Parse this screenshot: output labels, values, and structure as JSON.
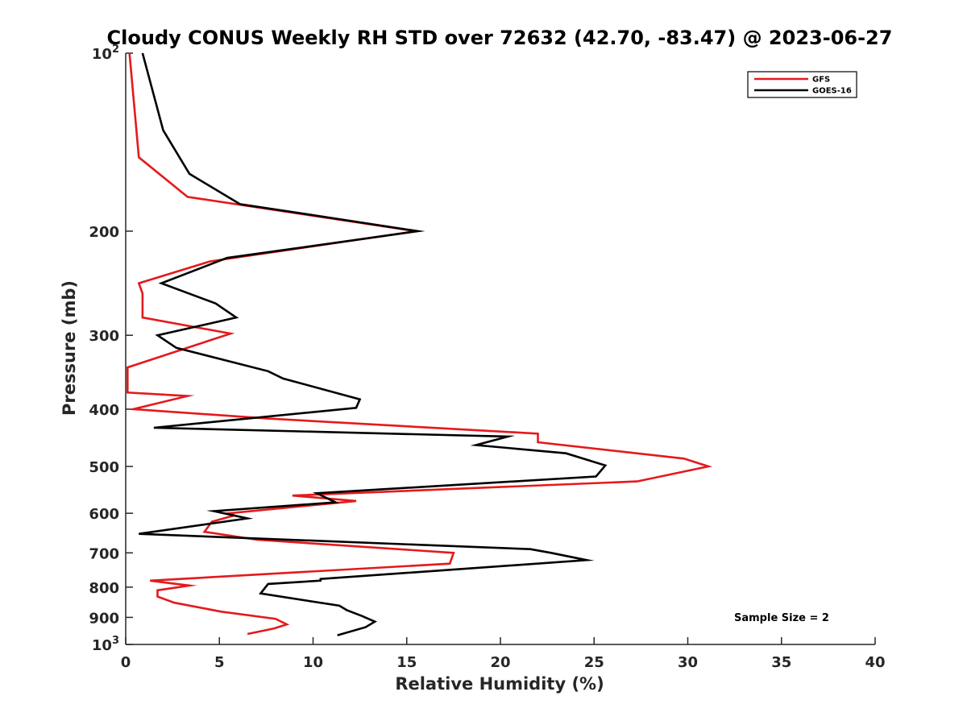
{
  "chart_data": {
    "type": "line",
    "title": "Cloudy CONUS Weekly RH STD over 72632 (42.70, -83.47) @ 2023-06-27",
    "xlabel": "Relative Humidity (%)",
    "ylabel": "Pressure (mb)",
    "xlim": [
      0,
      40
    ],
    "ylim": [
      100,
      1000
    ],
    "y_scale": "log",
    "y_reversed": true,
    "grid": false,
    "legend_position": "top-right",
    "x_ticks": [
      0,
      5,
      10,
      15,
      20,
      25,
      30,
      35,
      40
    ],
    "x_tick_labels": [
      "0",
      "5",
      "10",
      "15",
      "20",
      "25",
      "30",
      "35",
      "40"
    ],
    "y_ticks": [
      100,
      200,
      300,
      400,
      500,
      600,
      700,
      800,
      900,
      1000
    ],
    "y_tick_labels": [
      {
        "base": "10",
        "exp": "2"
      },
      {
        "base": "200",
        "exp": ""
      },
      {
        "base": "300",
        "exp": ""
      },
      {
        "base": "400",
        "exp": ""
      },
      {
        "base": "500",
        "exp": ""
      },
      {
        "base": "600",
        "exp": ""
      },
      {
        "base": "700",
        "exp": ""
      },
      {
        "base": "800",
        "exp": ""
      },
      {
        "base": "900",
        "exp": ""
      },
      {
        "base": "10",
        "exp": "3"
      }
    ],
    "series": [
      {
        "name": "GFS",
        "color": "#e41a1c",
        "points": [
          [
            0.2,
            100
          ],
          [
            0.7,
            150
          ],
          [
            3.3,
            175
          ],
          [
            15.5,
            200
          ],
          [
            4.5,
            225
          ],
          [
            0.7,
            245
          ],
          [
            0.9,
            255
          ],
          [
            0.9,
            280
          ],
          [
            5.6,
            298
          ],
          [
            0.1,
            340
          ],
          [
            0.1,
            375
          ],
          [
            3.3,
            380
          ],
          [
            0.4,
            400
          ],
          [
            7.6,
            415
          ],
          [
            22.0,
            440
          ],
          [
            22.0,
            455
          ],
          [
            29.8,
            485
          ],
          [
            31.1,
            500
          ],
          [
            27.3,
            530
          ],
          [
            8.9,
            560
          ],
          [
            12.3,
            572
          ],
          [
            5.5,
            600
          ],
          [
            5.8,
            605
          ],
          [
            4.6,
            620
          ],
          [
            4.2,
            645
          ],
          [
            7.0,
            665
          ],
          [
            17.5,
            700
          ],
          [
            17.3,
            730
          ],
          [
            1.3,
            780
          ],
          [
            3.4,
            795
          ],
          [
            1.7,
            810
          ],
          [
            1.7,
            830
          ],
          [
            2.6,
            850
          ],
          [
            5.1,
            880
          ],
          [
            8.0,
            905
          ],
          [
            8.6,
            925
          ],
          [
            7.9,
            940
          ],
          [
            6.5,
            960
          ]
        ]
      },
      {
        "name": "GOES-16",
        "color": "#000000",
        "points": [
          [
            0.9,
            100
          ],
          [
            2.0,
            135
          ],
          [
            3.4,
            160
          ],
          [
            6.1,
            180
          ],
          [
            11.0,
            190
          ],
          [
            15.6,
            200
          ],
          [
            5.4,
            222
          ],
          [
            1.9,
            245
          ],
          [
            4.8,
            265
          ],
          [
            5.9,
            280
          ],
          [
            1.7,
            300
          ],
          [
            2.7,
            315
          ],
          [
            7.6,
            345
          ],
          [
            8.4,
            355
          ],
          [
            12.5,
            385
          ],
          [
            12.3,
            398
          ],
          [
            1.5,
            430
          ],
          [
            20.4,
            445
          ],
          [
            18.7,
            460
          ],
          [
            23.5,
            475
          ],
          [
            25.6,
            498
          ],
          [
            25.1,
            520
          ],
          [
            10.2,
            555
          ],
          [
            11.2,
            575
          ],
          [
            4.7,
            595
          ],
          [
            6.5,
            612
          ],
          [
            0.7,
            650
          ],
          [
            21.6,
            690
          ],
          [
            22.7,
            700
          ],
          [
            24.6,
            720
          ],
          [
            10.4,
            775
          ],
          [
            10.4,
            780
          ],
          [
            7.6,
            790
          ],
          [
            7.2,
            820
          ],
          [
            11.4,
            860
          ],
          [
            11.8,
            875
          ],
          [
            12.6,
            895
          ],
          [
            13.3,
            915
          ],
          [
            12.8,
            935
          ],
          [
            11.3,
            965
          ]
        ]
      }
    ],
    "annotation": "Sample Size = 2"
  }
}
